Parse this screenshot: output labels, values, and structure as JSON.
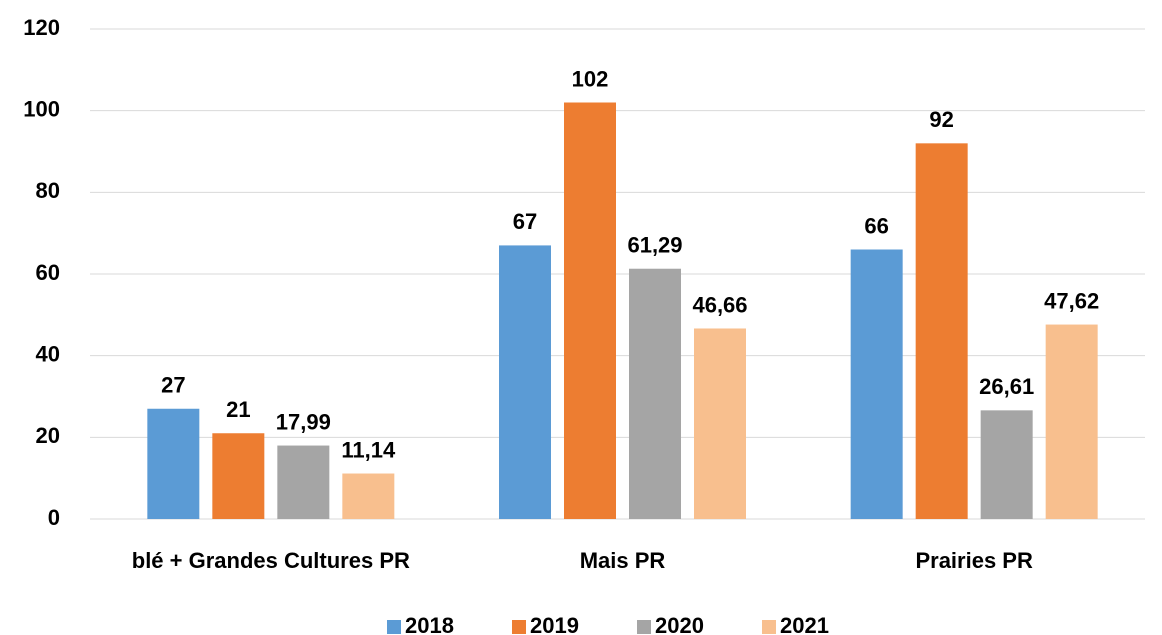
{
  "chart_data": {
    "type": "bar",
    "categories": [
      "blé + Grandes Cultures PR",
      "Mais PR",
      "Prairies PR"
    ],
    "series": [
      {
        "name": "2018",
        "color": "#5b9bd5",
        "values": [
          27,
          67,
          66
        ],
        "value_labels": [
          "27",
          "67",
          "66"
        ]
      },
      {
        "name": "2019",
        "color": "#ed7d31",
        "values": [
          21,
          102,
          92
        ],
        "value_labels": [
          "21",
          "102",
          "92"
        ]
      },
      {
        "name": "2020",
        "color": "#a5a5a5",
        "values": [
          17.99,
          61.29,
          26.61
        ],
        "value_labels": [
          "17,99",
          "61,29",
          "26,61"
        ]
      },
      {
        "name": "2021",
        "color": "#f8bf8e",
        "values": [
          11.14,
          46.66,
          47.62
        ],
        "value_labels": [
          "11,14",
          "46,66",
          "47,62"
        ]
      }
    ],
    "ylim": [
      0,
      120
    ],
    "yticks": [
      0,
      20,
      40,
      60,
      80,
      100,
      120
    ],
    "grid": true,
    "legend": "bottom"
  }
}
